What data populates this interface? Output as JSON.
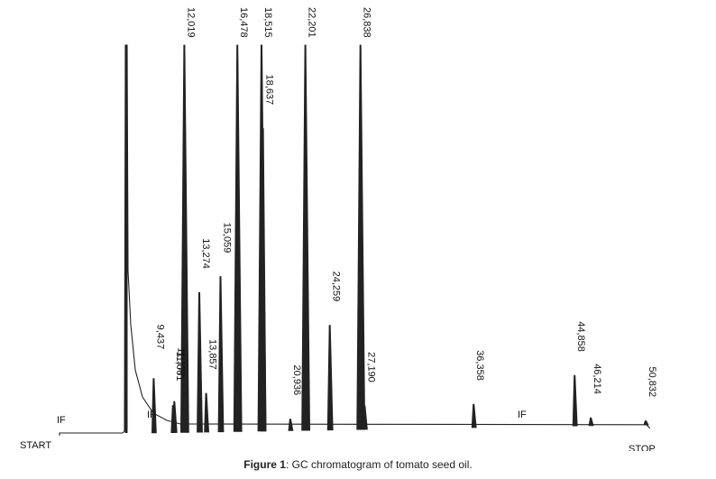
{
  "figure": {
    "caption_prefix": "Figure 1",
    "caption_text": ": GC chromatogram of tomato seed oil."
  },
  "chart_data": {
    "type": "line",
    "title": "",
    "xlabel": "",
    "ylabel": "",
    "start_label": "START",
    "stop_label": "STOP",
    "if_markers": [
      "IF",
      "IF",
      "IF"
    ],
    "peaks": [
      {
        "rt": "9,437",
        "height": 0.14
      },
      {
        "rt": "11,061",
        "height": 0.07
      },
      {
        "rt": "11,177",
        "height": 0.08
      },
      {
        "rt": "12,019",
        "height": 1.0
      },
      {
        "rt": "13,274",
        "height": 0.36
      },
      {
        "rt": "13,857",
        "height": 0.1
      },
      {
        "rt": "15,059",
        "height": 0.4
      },
      {
        "rt": "16,478",
        "height": 1.0
      },
      {
        "rt": "18,515",
        "height": 1.0
      },
      {
        "rt": "18,637",
        "height": 0.78
      },
      {
        "rt": "20,936",
        "height": 0.03
      },
      {
        "rt": "22,201",
        "height": 1.0
      },
      {
        "rt": "24,259",
        "height": 0.27
      },
      {
        "rt": "26,838",
        "height": 1.0
      },
      {
        "rt": "27,190",
        "height": 0.06
      },
      {
        "rt": "36,358",
        "height": 0.06
      },
      {
        "rt": "44,858",
        "height": 0.13
      },
      {
        "rt": "46,214",
        "height": 0.02
      },
      {
        "rt": "50,832",
        "height": 0.01
      }
    ]
  }
}
